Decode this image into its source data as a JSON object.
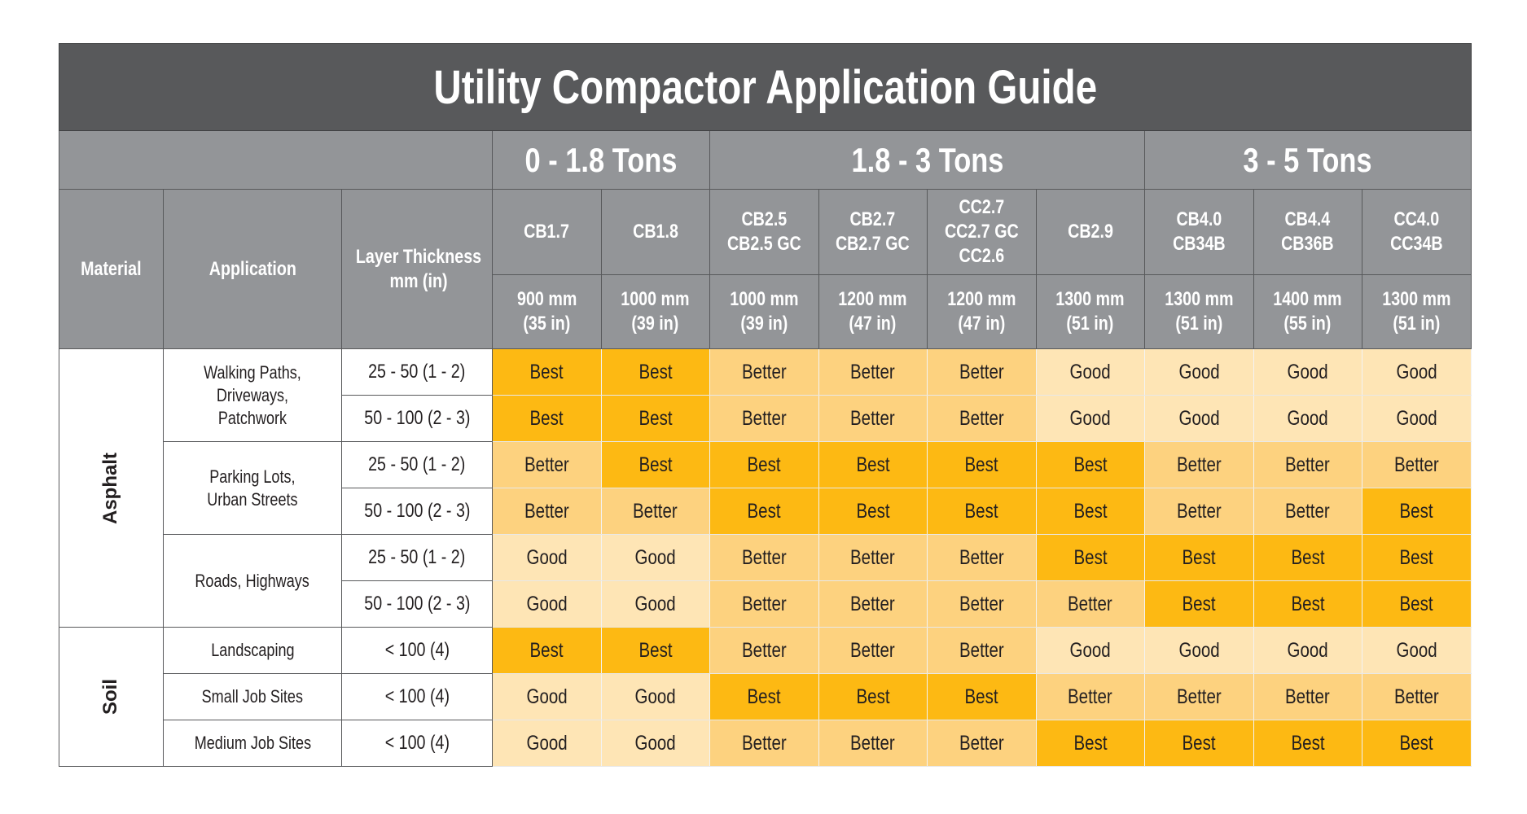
{
  "title": "Utility Compactor Application Guide",
  "weight_classes": [
    {
      "label": "0 - 1.8 Tons",
      "span": 2
    },
    {
      "label": "1.8 - 3 Tons",
      "span": 4
    },
    {
      "label": "3 - 5 Tons",
      "span": 3
    }
  ],
  "headers": {
    "material": "Material",
    "application": "Application",
    "thickness": "Layer Thickness mm (in)"
  },
  "models": [
    {
      "name": "CB1.7",
      "width": "900 mm",
      "width_in": "(35 in)"
    },
    {
      "name": "CB1.8",
      "width": "1000 mm",
      "width_in": "(39 in)"
    },
    {
      "name": "CB2.5\nCB2.5 GC",
      "width": "1000 mm",
      "width_in": "(39 in)"
    },
    {
      "name": "CB2.7\nCB2.7 GC",
      "width": "1200 mm",
      "width_in": "(47 in)"
    },
    {
      "name": "CC2.7\nCC2.7 GC\nCC2.6",
      "width": "1200 mm",
      "width_in": "(47 in)"
    },
    {
      "name": "CB2.9",
      "width": "1300 mm",
      "width_in": "(51 in)"
    },
    {
      "name": "CB4.0\nCB34B",
      "width": "1300 mm",
      "width_in": "(51 in)"
    },
    {
      "name": "CB4.4\nCB36B",
      "width": "1400 mm",
      "width_in": "(55 in)"
    },
    {
      "name": "CC4.0\nCC34B",
      "width": "1300 mm",
      "width_in": "(51 in)"
    }
  ],
  "colors": {
    "Best": "#fdb913",
    "Better": "#fdd27f",
    "Good": "#fee5b5",
    "title_bg": "#58595b",
    "header_bg": "#939598"
  },
  "materials": [
    {
      "name": "Asphalt",
      "applications": [
        {
          "name": "Walking Paths,\nDriveways,\nPatchwork",
          "rows": [
            {
              "thickness": "25 - 50 (1 - 2)",
              "ratings": [
                "Best",
                "Best",
                "Better",
                "Better",
                "Better",
                "Good",
                "Good",
                "Good",
                "Good"
              ]
            },
            {
              "thickness": "50 - 100 (2 - 3)",
              "ratings": [
                "Best",
                "Best",
                "Better",
                "Better",
                "Better",
                "Good",
                "Good",
                "Good",
                "Good"
              ]
            }
          ]
        },
        {
          "name": "Parking Lots,\nUrban Streets",
          "rows": [
            {
              "thickness": "25 - 50 (1 - 2)",
              "ratings": [
                "Better",
                "Best",
                "Best",
                "Best",
                "Best",
                "Best",
                "Better",
                "Better",
                "Better"
              ]
            },
            {
              "thickness": "50 - 100 (2 - 3)",
              "ratings": [
                "Better",
                "Better",
                "Best",
                "Best",
                "Best",
                "Best",
                "Better",
                "Better",
                "Best"
              ]
            }
          ]
        },
        {
          "name": "Roads, Highways",
          "rows": [
            {
              "thickness": "25 - 50 (1 - 2)",
              "ratings": [
                "Good",
                "Good",
                "Better",
                "Better",
                "Better",
                "Best",
                "Best",
                "Best",
                "Best"
              ]
            },
            {
              "thickness": "50 - 100 (2 - 3)",
              "ratings": [
                "Good",
                "Good",
                "Better",
                "Better",
                "Better",
                "Better",
                "Best",
                "Best",
                "Best"
              ]
            }
          ]
        }
      ]
    },
    {
      "name": "Soil",
      "applications": [
        {
          "name": "Landscaping",
          "rows": [
            {
              "thickness": "< 100 (4)",
              "ratings": [
                "Best",
                "Best",
                "Better",
                "Better",
                "Better",
                "Good",
                "Good",
                "Good",
                "Good"
              ]
            }
          ]
        },
        {
          "name": "Small Job Sites",
          "rows": [
            {
              "thickness": "< 100 (4)",
              "ratings": [
                "Good",
                "Good",
                "Best",
                "Best",
                "Best",
                "Better",
                "Better",
                "Better",
                "Better"
              ]
            }
          ]
        },
        {
          "name": "Medium Job Sites",
          "rows": [
            {
              "thickness": "< 100 (4)",
              "ratings": [
                "Good",
                "Good",
                "Better",
                "Better",
                "Better",
                "Best",
                "Best",
                "Best",
                "Best"
              ]
            }
          ]
        }
      ]
    }
  ]
}
